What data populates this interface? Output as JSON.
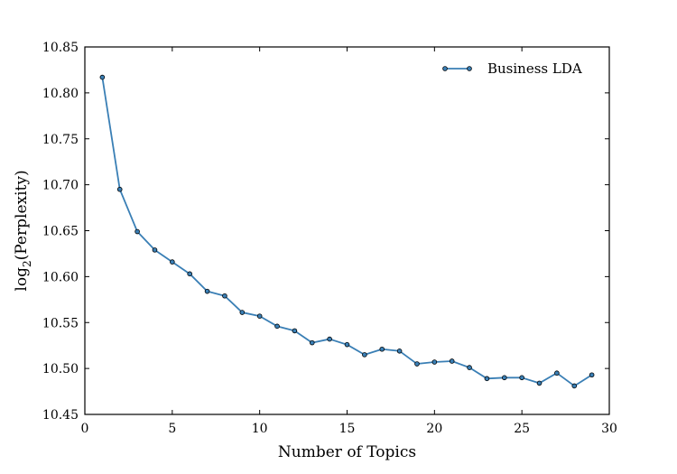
{
  "chart_data": {
    "type": "line",
    "xlabel": "Number of Topics",
    "ylabel": "log2(Perplexity)",
    "ylabel_parts": {
      "pre": "log",
      "sub": "2",
      "post": "(Perplexity)"
    },
    "xlim": [
      0,
      30
    ],
    "ylim": [
      10.45,
      10.85
    ],
    "xticks": [
      0,
      5,
      10,
      15,
      20,
      25,
      30
    ],
    "xtick_labels": [
      "0",
      "5",
      "10",
      "15",
      "20",
      "25",
      "30"
    ],
    "yticks": [
      10.45,
      10.5,
      10.55,
      10.6,
      10.65,
      10.7,
      10.75,
      10.8,
      10.85
    ],
    "ytick_labels": [
      "10.45",
      "10.50",
      "10.55",
      "10.60",
      "10.65",
      "10.70",
      "10.75",
      "10.80",
      "10.85"
    ],
    "grid": false,
    "legend_position": "top-right",
    "series": [
      {
        "name": "Business LDA",
        "color": "#3a7fb5",
        "x": [
          1,
          2,
          3,
          4,
          5,
          6,
          7,
          8,
          9,
          10,
          11,
          12,
          13,
          14,
          15,
          16,
          17,
          18,
          19,
          20,
          21,
          22,
          23,
          24,
          25,
          26,
          27,
          28,
          29
        ],
        "y": [
          10.817,
          10.695,
          10.649,
          10.629,
          10.616,
          10.603,
          10.584,
          10.579,
          10.561,
          10.557,
          10.546,
          10.541,
          10.528,
          10.532,
          10.526,
          10.515,
          10.521,
          10.519,
          10.505,
          10.507,
          10.508,
          10.501,
          10.489,
          10.49,
          10.49,
          10.484,
          10.495,
          10.481,
          10.493
        ]
      }
    ]
  }
}
